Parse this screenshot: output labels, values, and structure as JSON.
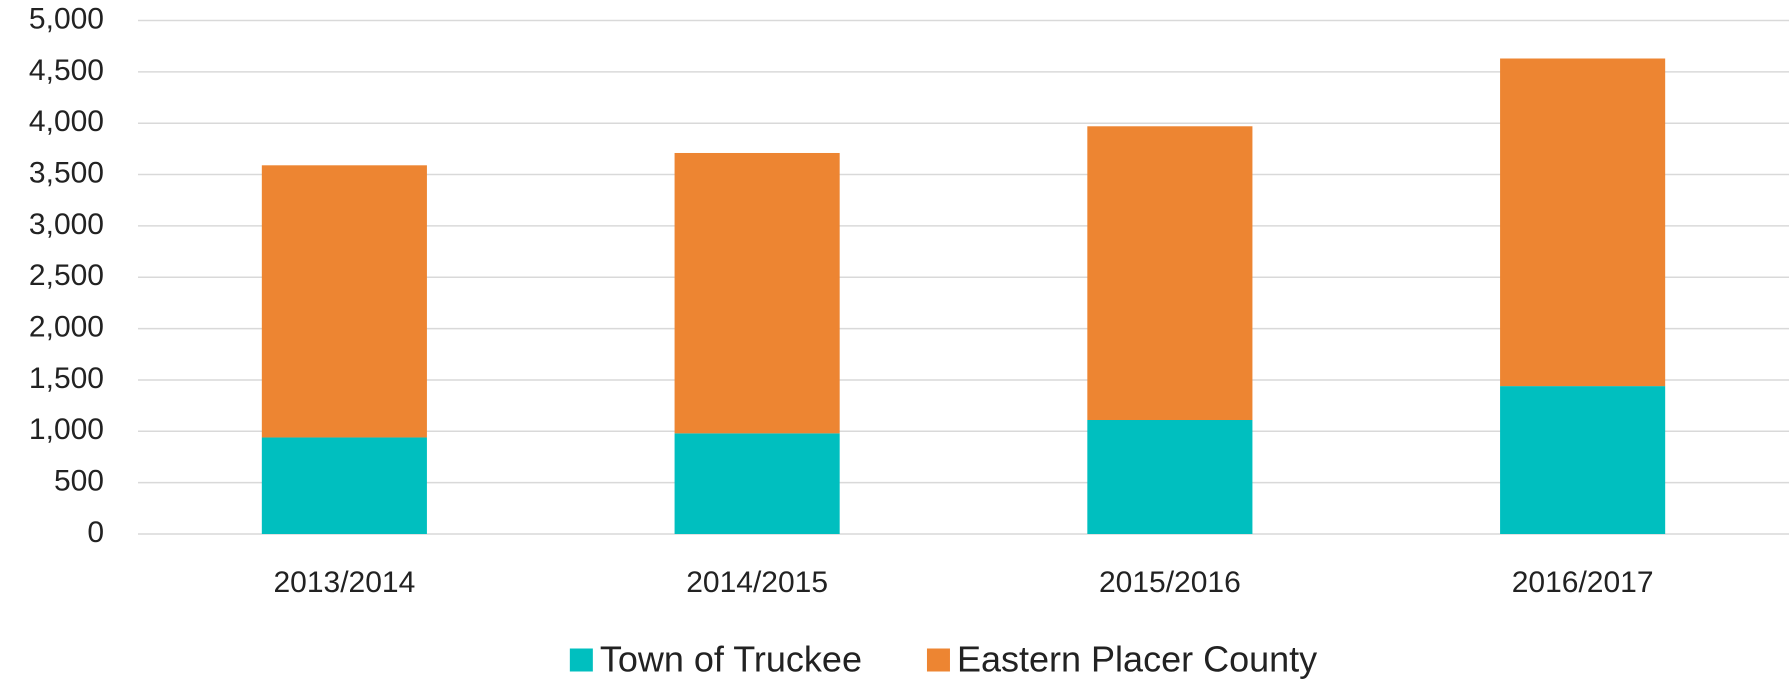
{
  "chart_data": {
    "type": "bar",
    "stacked": true,
    "categories": [
      "2013/2014",
      "2014/2015",
      "2015/2016",
      "2016/2017"
    ],
    "series": [
      {
        "name": "Town of Truckee",
        "color": "#00bfbf",
        "values": [
          940,
          980,
          1110,
          1440
        ]
      },
      {
        "name": "Eastern Placer County",
        "color": "#ed8532",
        "values": [
          2650,
          2730,
          2860,
          3190
        ]
      }
    ],
    "ylim": [
      0,
      5000
    ],
    "yticks": [
      0,
      500,
      {
        "value": 1000,
        "label": "1,000"
      },
      {
        "value": 1500,
        "label": "1,500"
      },
      {
        "value": 2000,
        "label": "2,000"
      },
      {
        "value": 2500,
        "label": "2,500"
      },
      {
        "value": 3000,
        "label": "3,000"
      },
      {
        "value": 3500,
        "label": "3,500"
      },
      {
        "value": 4000,
        "label": "4,000"
      },
      {
        "value": 4500,
        "label": "4,500"
      },
      {
        "value": 5000,
        "label": "5,000"
      }
    ],
    "grid": true,
    "legend": "bottom"
  }
}
